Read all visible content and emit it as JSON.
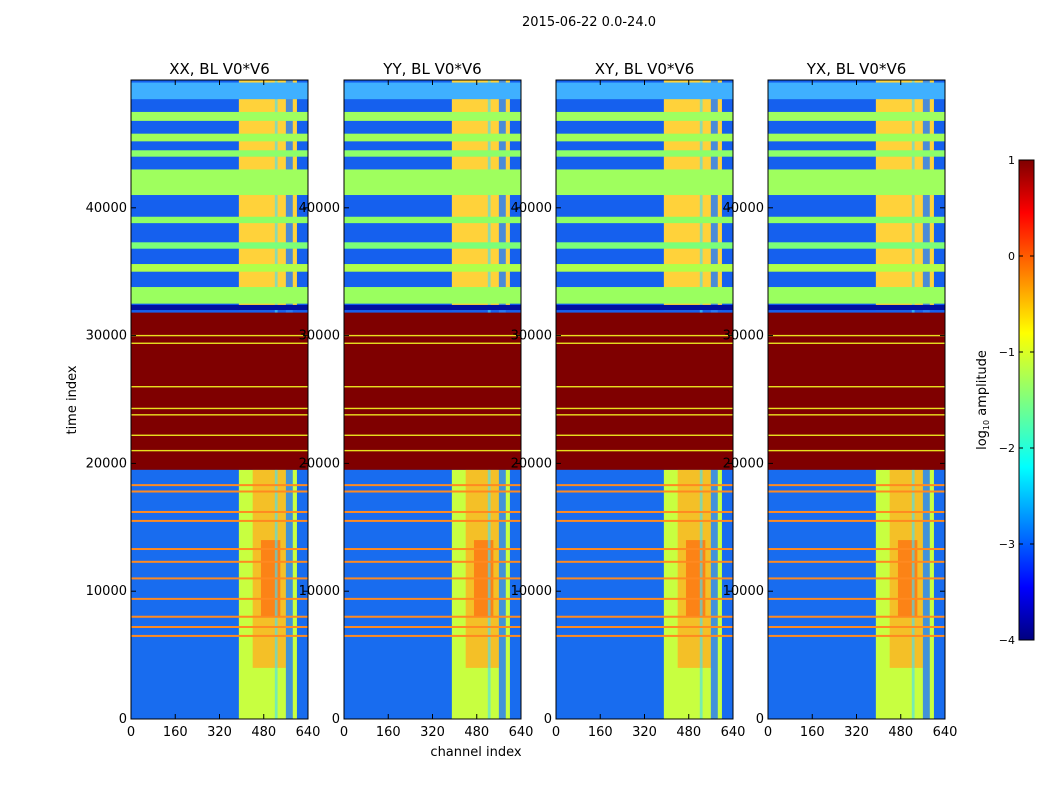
{
  "chart_data": {
    "type": "heatmap",
    "suptitle": "2015-06-22 0.0-24.0",
    "xlabel": "channel index",
    "ylabel": "time index",
    "xlim": [
      0,
      640
    ],
    "ylim": [
      0,
      50000
    ],
    "xticks": [
      0,
      160,
      320,
      480,
      640
    ],
    "yticks": [
      0,
      10000,
      20000,
      30000,
      40000
    ],
    "ytick_labels": [
      "0",
      "10000",
      "20000",
      "30000",
      "40000"
    ],
    "panels": [
      {
        "title": "XX, BL V0*V6",
        "band_start": 390,
        "band_end": 600
      },
      {
        "title": "YY, BL V0*V6",
        "band_start": 390,
        "band_end": 600
      },
      {
        "title": "XY, BL V0*V6",
        "band_start": 390,
        "band_end": 600
      },
      {
        "title": "YX, BL V0*V6",
        "band_start": 390,
        "band_end": 600
      }
    ],
    "colorbar": {
      "label": "log10 amplitude",
      "label_main": "log",
      "label_sub": "10",
      "label_rest": " amplitude",
      "range": [
        -4,
        1
      ],
      "ticks": [
        1,
        0,
        -1,
        -2,
        -3,
        -4
      ],
      "tick_labels": [
        "1",
        "0",
        "−1",
        "−2",
        "−3",
        "−4"
      ]
    },
    "saturated_region": {
      "y_start": 19500,
      "y_end": 31800,
      "log_amplitude": 1
    },
    "flag_rows": [
      6500,
      7200,
      8000,
      9400,
      11000,
      12300,
      13300,
      15500,
      16200,
      17800,
      18300
    ]
  }
}
